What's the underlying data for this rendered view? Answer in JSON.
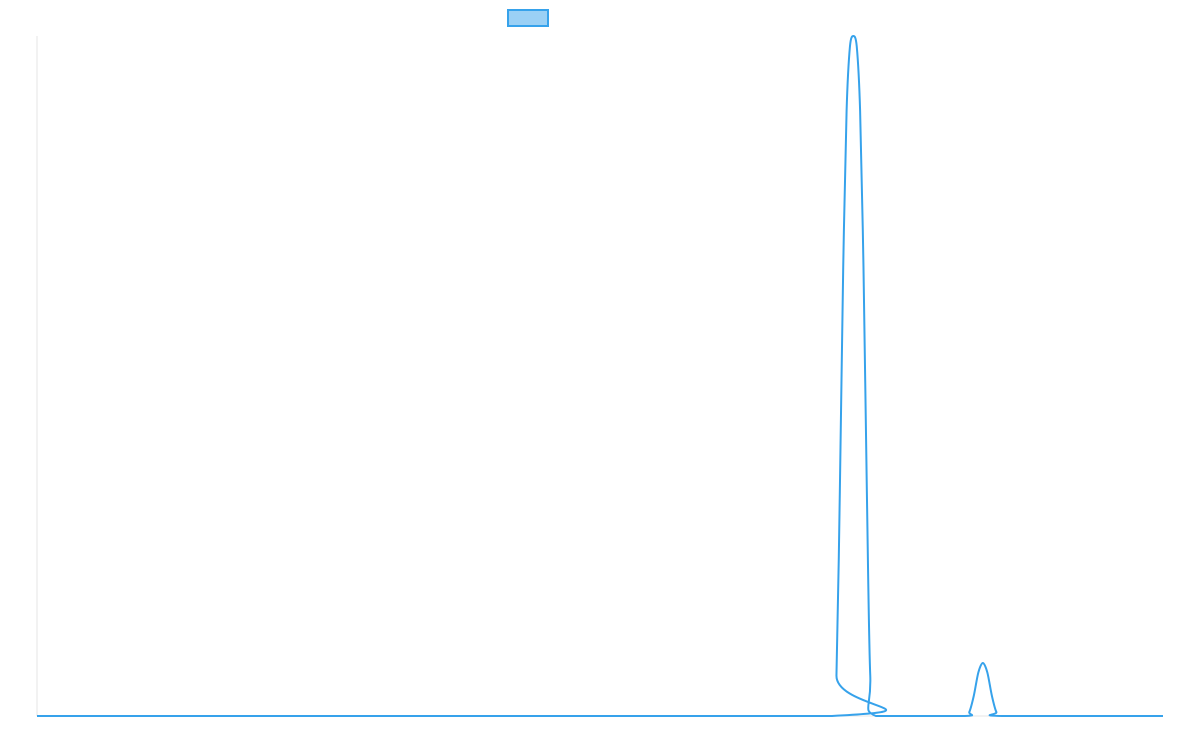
{
  "chart_data": {
    "type": "line",
    "title": "",
    "xlabel": "",
    "ylabel": "",
    "legend": {
      "position": "top-center",
      "entries": [
        {
          "name": "",
          "color": "#36a2eb",
          "fill": "#9ad0f5"
        }
      ]
    },
    "xlim": [
      0,
      1
    ],
    "ylim": [
      0,
      1
    ],
    "grid": false,
    "colors": {
      "line": "#36a2eb",
      "legend_fill": "#9ad0f5",
      "axis": "#e5e5e5"
    },
    "series": [
      {
        "name": "",
        "x": [
          0.0,
          0.706,
          0.71,
          0.713,
          0.716,
          0.719,
          0.722,
          0.725,
          0.728,
          0.731,
          0.734,
          0.737,
          0.74,
          0.745,
          0.824,
          0.828,
          0.832,
          0.836,
          0.84,
          0.844,
          0.848,
          0.852,
          0.857,
          1.0
        ],
        "y": [
          0.0,
          0.0,
          0.06,
          0.33,
          0.66,
          0.89,
          0.985,
          1.0,
          0.985,
          0.89,
          0.66,
          0.33,
          0.06,
          0.0,
          0.0,
          0.006,
          0.03,
          0.064,
          0.078,
          0.064,
          0.03,
          0.006,
          0.0,
          0.0
        ]
      }
    ]
  }
}
